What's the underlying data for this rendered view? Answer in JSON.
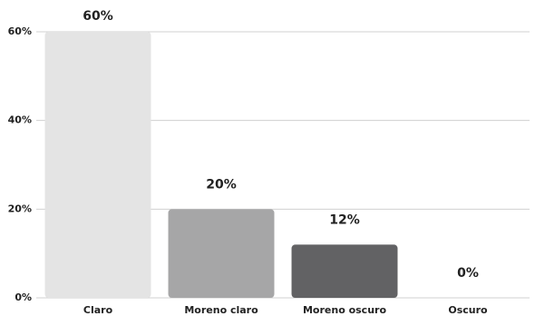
{
  "chart_data": {
    "type": "bar",
    "categories": [
      "Claro",
      "Moreno claro",
      "Moreno oscuro",
      "Oscuro"
    ],
    "values": [
      60,
      20,
      12,
      0
    ],
    "value_labels": [
      "60%",
      "20%",
      "12%",
      "0%"
    ],
    "colors": [
      "#e4e4e4",
      "#a6a6a7",
      "#626264",
      "#3a3a3c"
    ],
    "ylim": [
      0,
      60
    ],
    "yticks": [
      {
        "value": 0,
        "label": "0%"
      },
      {
        "value": 20,
        "label": "20%"
      },
      {
        "value": 40,
        "label": "40%"
      },
      {
        "value": 60,
        "label": "60%"
      }
    ],
    "grid": true
  }
}
